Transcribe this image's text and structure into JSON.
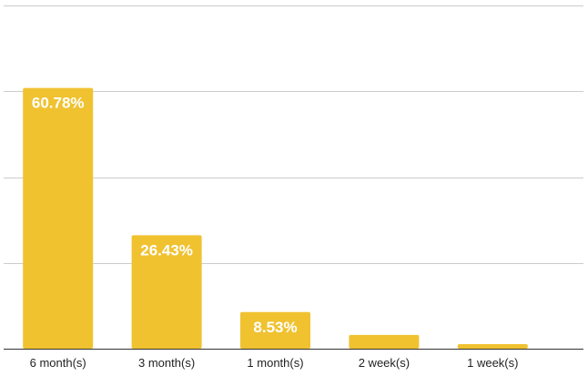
{
  "chart_data": {
    "type": "bar",
    "categories": [
      "6 month(s)",
      "3 month(s)",
      "1 month(s)",
      "2 week(s)",
      "1 week(s)"
    ],
    "values": [
      60.78,
      26.43,
      8.53,
      3.2,
      1.06
    ],
    "data_labels": [
      "60.78%",
      "26.43%",
      "8.53%",
      "",
      ""
    ],
    "ylim": [
      0,
      80
    ],
    "gridlines": [
      0,
      20,
      40,
      60,
      80
    ],
    "grid": true,
    "bar_color": "#F0C230"
  }
}
